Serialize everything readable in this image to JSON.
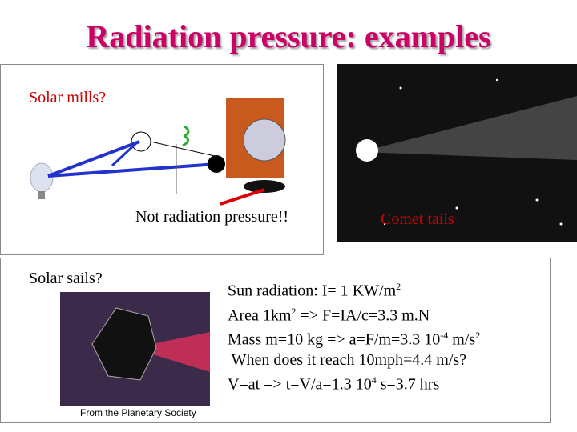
{
  "title": "Radiation pressure: examples",
  "panel_mills": {
    "label": "Solar mills?",
    "note": "Not radiation pressure!!"
  },
  "panel_comet": {
    "label": "Comet tails"
  },
  "panel_sails": {
    "label": "Solar sails?",
    "credit": "From the Planetary Society",
    "lines": [
      [
        "Sun radiation: I= 1 KW/m",
        "2"
      ],
      [
        "Area 1km",
        "2",
        " => F=IA/c=3.3 m.N"
      ],
      [
        "Mass m=10 kg => a=F/m=3.3 10",
        "-4",
        " m/s",
        "2"
      ],
      [
        " When does it reach 10mph=4.4 m/s?"
      ],
      [
        "V=at => t=V/a=1.3 10",
        "4",
        " s=3.7 hrs"
      ]
    ]
  }
}
